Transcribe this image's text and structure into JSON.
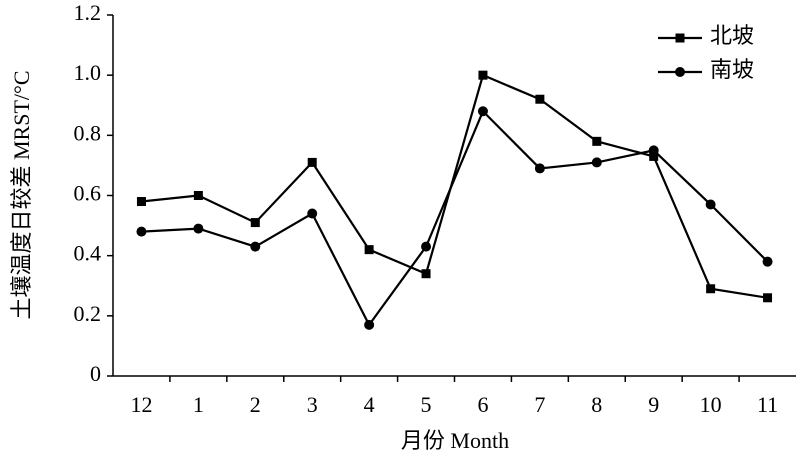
{
  "chart_data": {
    "type": "line",
    "x_label": "月份 Month",
    "y_label": "土壤温度日较差 MRST/°C",
    "categories": [
      "12",
      "1",
      "2",
      "3",
      "4",
      "5",
      "6",
      "7",
      "8",
      "9",
      "10",
      "11"
    ],
    "series": [
      {
        "name": "北坡",
        "color": "#000000",
        "marker": "square",
        "values": [
          0.58,
          0.6,
          0.51,
          0.71,
          0.42,
          0.34,
          1.0,
          0.92,
          0.78,
          0.73,
          0.29,
          0.26
        ]
      },
      {
        "name": "南坡",
        "color": "#000000",
        "marker": "circle",
        "values": [
          0.48,
          0.49,
          0.43,
          0.54,
          0.17,
          0.43,
          0.88,
          0.69,
          0.71,
          0.75,
          0.57,
          0.38
        ]
      }
    ],
    "ylim": [
      0,
      1.2
    ],
    "yticks": [
      0,
      0.2,
      0.4,
      0.6,
      0.8,
      {
        "value": 1,
        "label": "1.0"
      },
      1.2
    ],
    "grid": false,
    "legend": "upper right"
  }
}
